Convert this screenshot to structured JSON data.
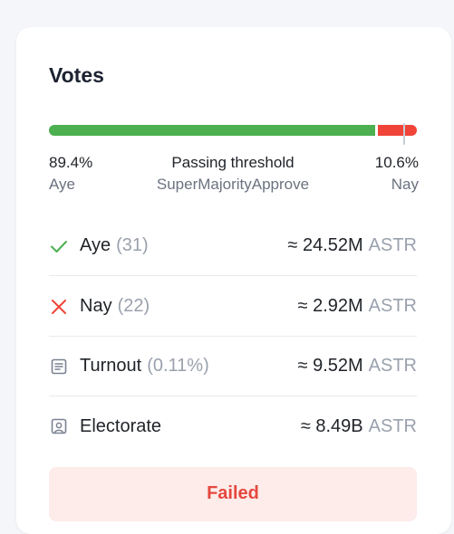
{
  "votes": {
    "title": "Votes",
    "bar": {
      "aye_fraction": 0.894,
      "nay_fraction": 0.106,
      "threshold_fraction": 0.965
    },
    "aye_percent": "89.4%",
    "aye_label": "Aye",
    "nay_percent": "10.6%",
    "nay_label": "Nay",
    "threshold_title": "Passing threshold",
    "threshold_type": "SuperMajorityApprove"
  },
  "rows": [
    {
      "label": "Aye",
      "count": "(31)",
      "value": "≈ 24.52M",
      "unit": "ASTR",
      "icon": "check-icon"
    },
    {
      "label": "Nay",
      "count": "(22)",
      "value": "≈ 2.92M",
      "unit": "ASTR",
      "icon": "cross-icon"
    },
    {
      "label": "Turnout",
      "count": "(0.11%)",
      "value": "≈ 9.52M",
      "unit": "ASTR",
      "icon": "document-icon"
    },
    {
      "label": "Electorate",
      "count": "",
      "value": "≈ 8.49B",
      "unit": "ASTR",
      "icon": "electorate-icon"
    }
  ],
  "status": {
    "text": "Failed"
  },
  "colors": {
    "aye": "#4caf50",
    "nay": "#f04438",
    "failed_bg": "#fdecea",
    "failed_text": "#e5483f"
  }
}
